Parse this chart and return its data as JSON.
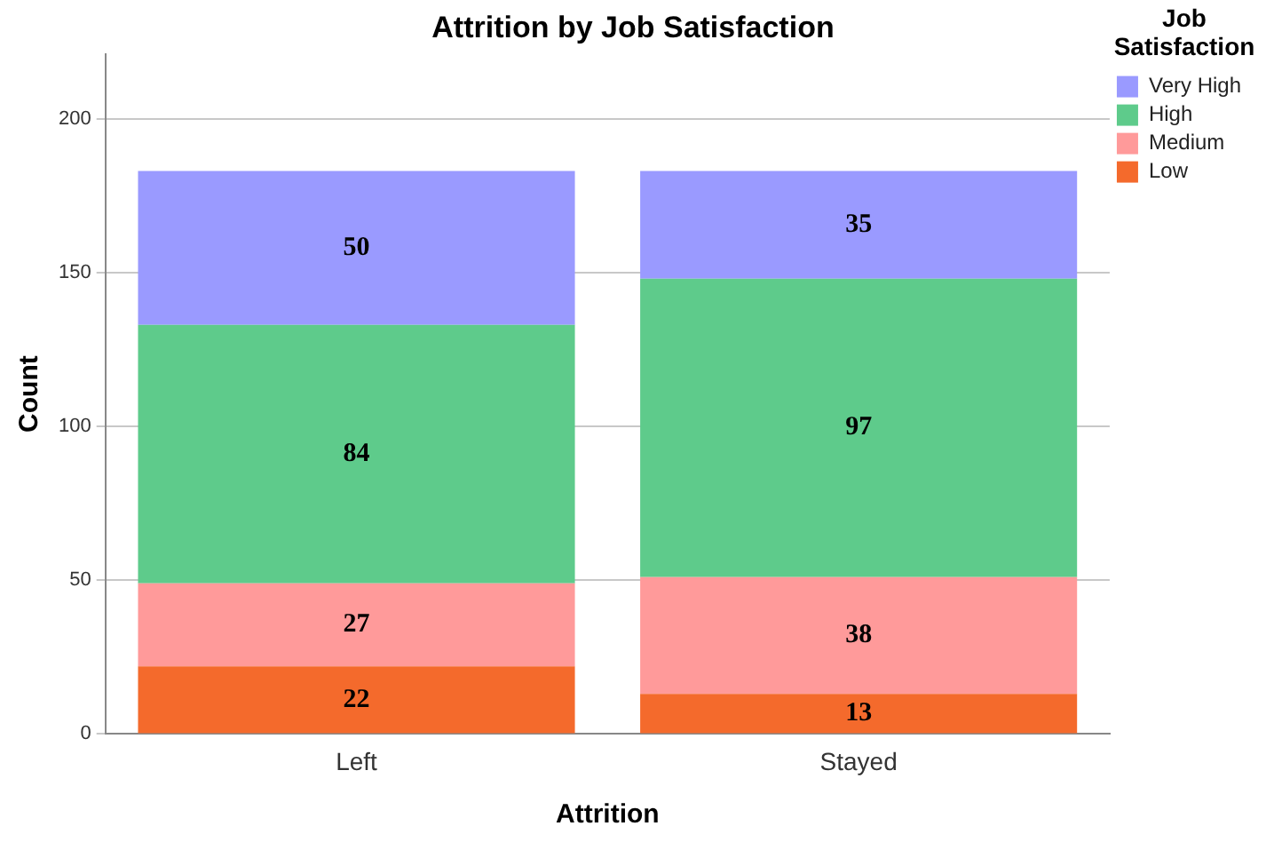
{
  "chart_data": {
    "type": "bar",
    "title": "Attrition by Job Satisfaction",
    "xlabel": "Attrition",
    "ylabel": "Count",
    "legend_title": "Job Satisfaction",
    "categories": [
      "Left",
      "Stayed"
    ],
    "series": [
      {
        "name": "Low",
        "color": "#f46a2c",
        "values": [
          22,
          13
        ]
      },
      {
        "name": "Medium",
        "color": "#ff9a9a",
        "values": [
          27,
          38
        ]
      },
      {
        "name": "High",
        "color": "#5ecb8b",
        "values": [
          84,
          97
        ]
      },
      {
        "name": "Very High",
        "color": "#9a9aff",
        "values": [
          50,
          35
        ]
      }
    ],
    "stacked": true,
    "ylim": [
      0,
      221
    ],
    "yticks": [
      0,
      50,
      100,
      150,
      200
    ],
    "grid": "y",
    "legend": "top right",
    "data_labels": true
  }
}
